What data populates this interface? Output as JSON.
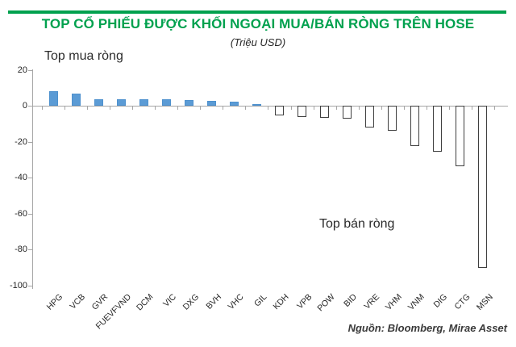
{
  "header": {
    "title": "TOP CỔ PHIẾU ĐƯỢC KHỐI NGOẠI MUA/BÁN RÒNG TRÊN HOSE",
    "subtitle": "(Triệu USD)"
  },
  "annotations": {
    "buy_label": "Top mua ròng",
    "sell_label": "Top bán ròng"
  },
  "source": "Nguồn: Bloomberg, Mirae Asset",
  "colors": {
    "accent_green": "#00A14E",
    "buy_bar_fill": "#5B9BD5",
    "buy_bar_border": "#4E91CE",
    "sell_bar_fill": "#FFFFFF",
    "sell_bar_border": "#3F3F3F",
    "axis": "#A6A6A6",
    "text": "#262626"
  },
  "chart_data": {
    "type": "bar",
    "title": "TOP CỔ PHIẾU ĐƯỢC KHỐI NGOẠI MUA/BÁN RÒNG TRÊN HOSE",
    "subtitle": "(Triệu USD)",
    "unit": "Triệu USD",
    "categories": [
      "HPG",
      "VCB",
      "GVR",
      "FUEVFVND",
      "DCM",
      "VIC",
      "DXG",
      "BVH",
      "VHC",
      "GIL",
      "KDH",
      "VPB",
      "POW",
      "BID",
      "VRE",
      "VHM",
      "VNM",
      "DIG",
      "CTG",
      "MSN"
    ],
    "values": [
      8,
      6.8,
      3.7,
      3.5,
      3.4,
      3.4,
      3.3,
      2.8,
      2.2,
      1,
      -5.5,
      -6.3,
      -6.8,
      -7.1,
      -12.3,
      -14,
      -22.5,
      -25.5,
      -33.5,
      -90.5
    ],
    "series_split": {
      "positive_label": "Top mua ròng",
      "negative_label": "Top bán ròng"
    },
    "ylim": [
      -100,
      20
    ],
    "yticks": [
      20,
      0,
      -20,
      -40,
      -60,
      -80,
      -100
    ],
    "grid": false,
    "legend": "none",
    "x_tick_rotation": 45
  }
}
